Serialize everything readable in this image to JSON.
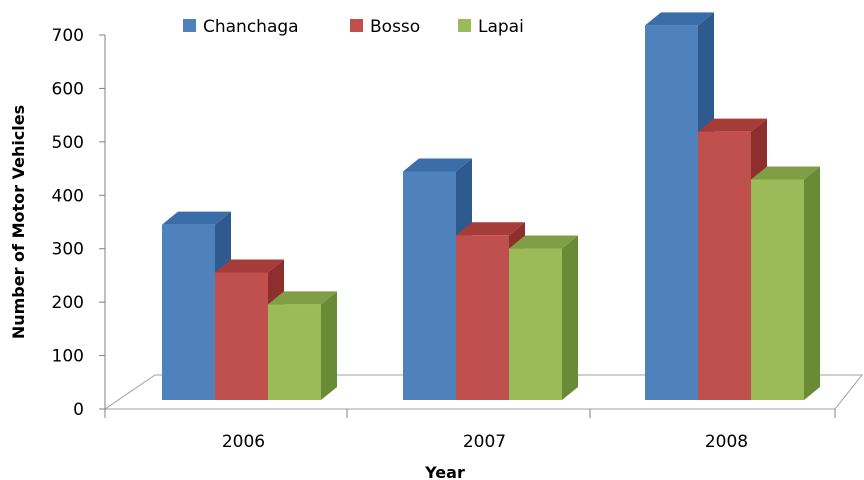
{
  "chart_data": {
    "type": "bar",
    "title": "",
    "xlabel": "Year",
    "ylabel": "Number of Motor Vehicles",
    "categories": [
      "2006",
      "2007",
      "2008"
    ],
    "series": [
      {
        "name": "Chanchaga",
        "values": [
          330,
          430,
          705
        ],
        "color": "#4F81BD",
        "side": "#2F5A8F",
        "top": "#3B6DA8"
      },
      {
        "name": "Bosso",
        "values": [
          240,
          310,
          505
        ],
        "color": "#C0504D",
        "side": "#8E2F2D",
        "top": "#A63C39"
      },
      {
        "name": "Lapai",
        "values": [
          180,
          285,
          415
        ],
        "color": "#9BBB59",
        "side": "#6A8A35",
        "top": "#7F9E45"
      }
    ],
    "yticks": [
      "0",
      "100",
      "200",
      "300",
      "400",
      "500",
      "600",
      "700"
    ],
    "ylim": [
      0,
      700
    ],
    "legend": "top",
    "grid": false,
    "style": "3d-column"
  }
}
